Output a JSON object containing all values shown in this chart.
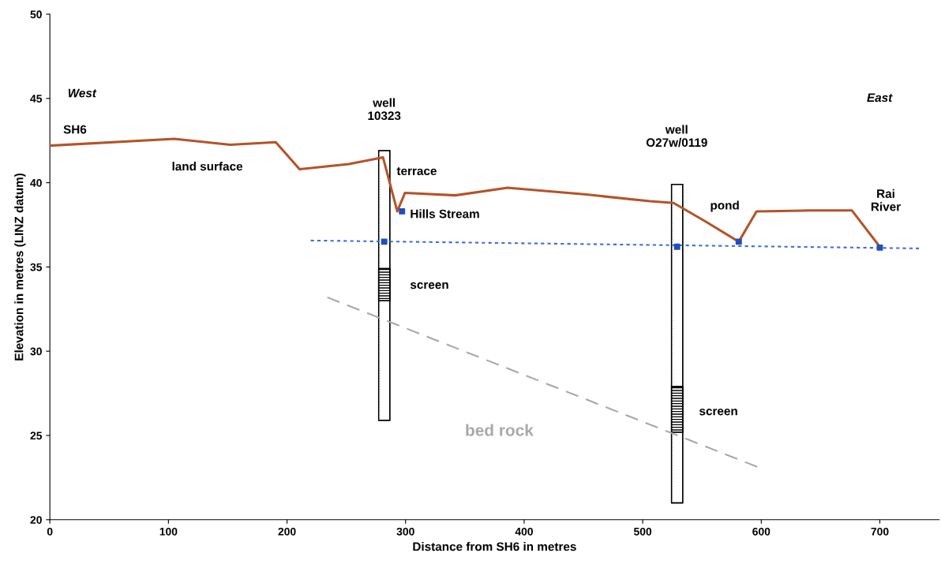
{
  "chart_data": {
    "type": "line",
    "xlabel": "Distance from SH6 in metres",
    "ylabel": "Elevation in metres (LINZ datum)",
    "xlim": [
      0,
      750
    ],
    "xticks": [
      0,
      100,
      200,
      300,
      400,
      500,
      600,
      700
    ],
    "ylim": [
      20,
      50
    ],
    "yticks": [
      20,
      25,
      30,
      35,
      40,
      45,
      50
    ],
    "grid": false,
    "legend": false,
    "series": [
      {
        "type": "bar",
        "color": "#ffffff",
        "x": [
          282,
          529
        ],
        "base": [
          25.9,
          21.0
        ],
        "values": [
          16.0,
          18.9
        ]
      },
      {
        "type": "bar",
        "color": "#000000",
        "x": [
          282,
          529
        ],
        "base": [
          33.0,
          25.2
        ],
        "values": [
          1.9,
          2.7
        ]
      },
      {
        "color": "#b5532a",
        "line_style": "solid",
        "x": [
          0,
          105,
          152,
          190.5,
          210.6,
          252,
          281,
          293,
          299.5,
          342,
          386,
          452.5,
          506,
          526,
          553,
          581,
          596,
          640,
          676.5,
          700
        ],
        "values": [
          42.2,
          42.6,
          42.25,
          42.4,
          40.8,
          41.1,
          41.5,
          38.3,
          39.4,
          39.25,
          39.7,
          39.3,
          38.9,
          38.8,
          37.7,
          36.5,
          38.3,
          38.35,
          38.35,
          36.2
        ]
      },
      {
        "color": "#3a6fd8",
        "line_style": "dotted",
        "x": [
          220,
          733
        ],
        "values": [
          36.57,
          36.1
        ]
      },
      {
        "name": "bed rock",
        "color": "#a8a8a8",
        "line_style": "dashed",
        "x": [
          234,
          598
        ],
        "values": [
          33.2,
          23.1
        ]
      },
      {
        "type": "scatter",
        "color": "#1f4fbf",
        "marker": "square",
        "x": [
          282,
          297,
          529,
          581,
          700
        ],
        "values": [
          36.5,
          38.3,
          36.2,
          36.5,
          36.15
        ]
      }
    ],
    "annotations": [
      "West",
      "East",
      "SH6",
      "land surface",
      "well\n10323",
      "terrace",
      "Hills Stream",
      "screen",
      "well\nO27w/0119",
      "screen",
      "pond",
      "Rai\nRiver"
    ]
  }
}
